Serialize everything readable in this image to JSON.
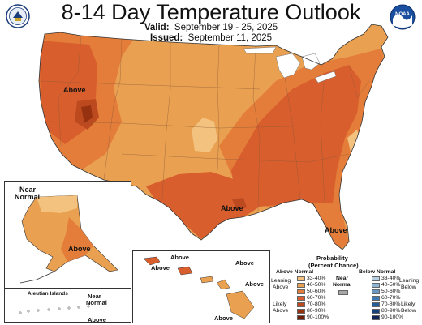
{
  "title": "8-14 Day Temperature Outlook",
  "valid_label": "Valid:",
  "valid_value": "September 19 - 25, 2025",
  "issued_label": "Issued:",
  "issued_value": "September 11, 2025",
  "logos": {
    "left": "Department of Commerce seal",
    "right": "NOAA",
    "right_text": "NOAA"
  },
  "colors": {
    "p33_40": "#f2c27e",
    "p40_50": "#e9a050",
    "p50_60": "#e47d3a",
    "p60_70": "#d95e2d",
    "p70_80": "#bd4a1f",
    "p80_90": "#963210",
    "p90_100": "#6e1d06",
    "near_normal": "#a8a8a8",
    "below_33_40": "#b7cfe3",
    "below_40_50": "#8fb5d6",
    "below_50_60": "#6798c5",
    "below_60_70": "#3f79b0",
    "below_70_80": "#265e98",
    "below_80_90": "#19417a",
    "below_90_100": "#0e2556"
  },
  "map_labels": {
    "conus_above_west": "Above",
    "conus_above_gulf": "Above",
    "conus_above_florida": "Above",
    "alaska_near_normal_1": "Near",
    "alaska_near_normal_2": "Normal",
    "alaska_above": "Above",
    "aleutian_title": "Aleutian Islands",
    "aleutian_near_1": "Near",
    "aleutian_near_2": "Normal",
    "aleutian_above": "Above",
    "hawaii_above_1": "Above",
    "hawaii_above_2": "Above",
    "hawaii_above_3": "Above",
    "hawaii_above_4": "Above",
    "hawaii_above_5": "Above"
  },
  "legend": {
    "title_1": "Probability",
    "title_2": "(Percent Chance)",
    "above_header": "Above Normal",
    "below_header": "Below Normal",
    "near_header_1": "Near",
    "near_header_2": "Normal",
    "leaning_above_1": "Leaning",
    "leaning_above_2": "Above",
    "likely_above_1": "Likely",
    "likely_above_2": "Above",
    "leaning_below_1": "Leaning",
    "leaning_below_2": "Below",
    "likely_below_1": "Likely",
    "likely_below_2": "Below",
    "above_items": [
      "33-40%",
      "40-50%",
      "50-60%",
      "60-70%",
      "70-80%",
      "80-90%",
      "90-100%"
    ],
    "below_items": [
      "33-40%",
      "40-50%",
      "50-60%",
      "60-70%",
      "70-80%",
      "80-90%",
      "90-100%"
    ]
  }
}
